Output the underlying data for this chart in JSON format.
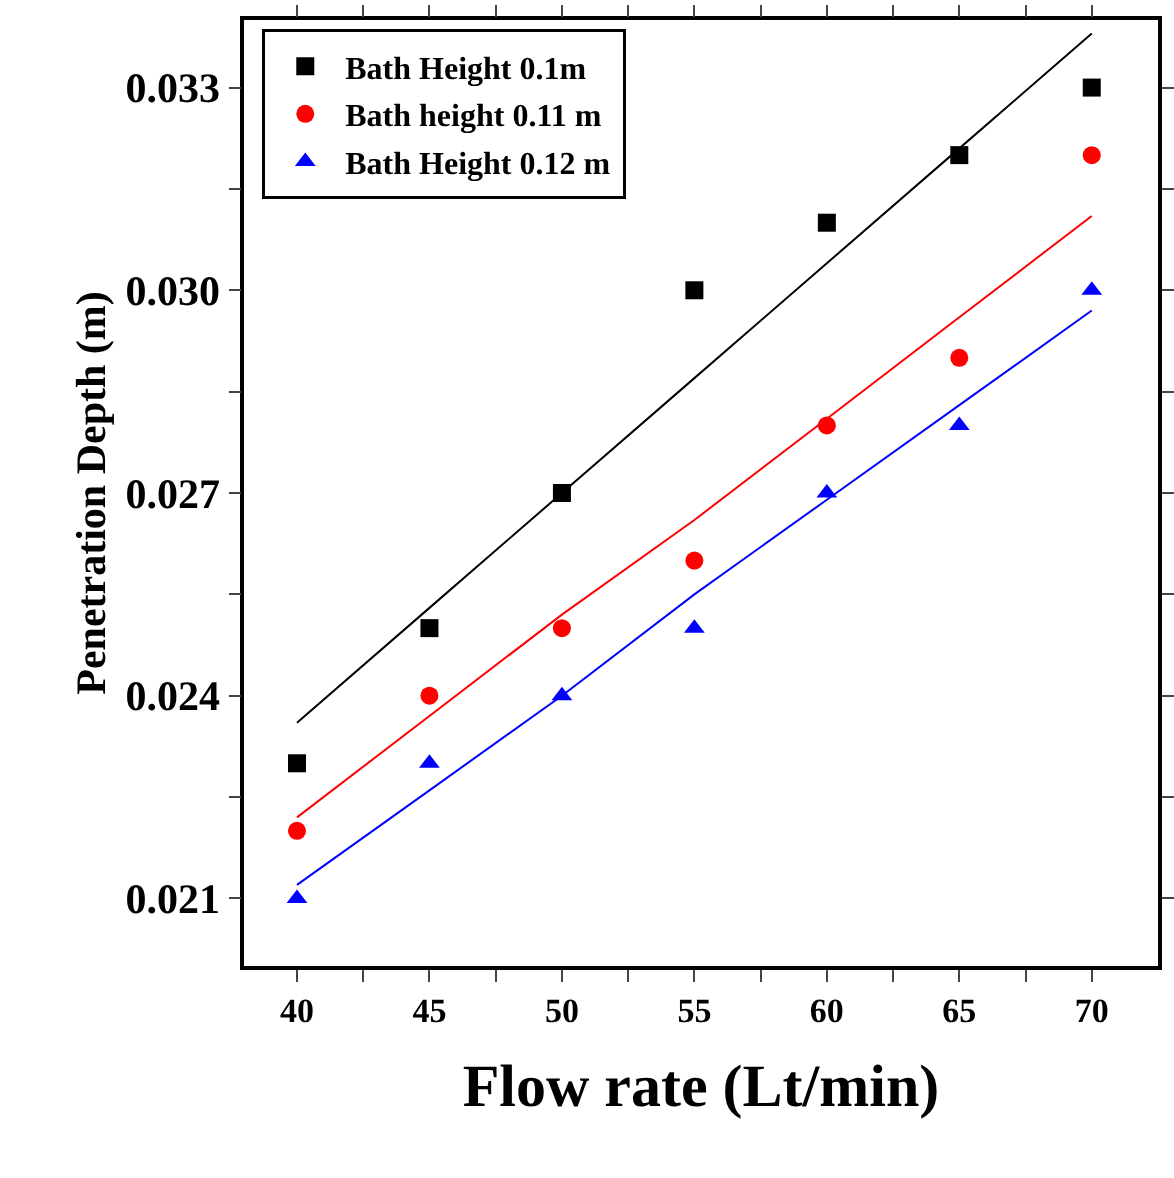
{
  "chart_data": {
    "type": "scatter",
    "xlabel": "Flow rate (Lt/min)",
    "ylabel": "Penetration Depth (m)",
    "x": [
      40,
      45,
      50,
      55,
      60,
      65,
      70
    ],
    "series": [
      {
        "name": "Bath Height 0.1m",
        "color": "#000000",
        "marker": "square",
        "values": [
          0.023,
          0.025,
          0.027,
          0.03,
          0.031,
          0.032,
          0.033
        ]
      },
      {
        "name": "Bath height 0.11 m",
        "color": "#ff0000",
        "marker": "circle",
        "values": [
          0.022,
          0.024,
          0.025,
          0.026,
          0.028,
          0.029,
          0.032
        ]
      },
      {
        "name": "Bath Height 0.12 m",
        "color": "#0000ff",
        "marker": "triangle",
        "values": [
          0.021,
          0.023,
          0.024,
          0.025,
          0.027,
          0.028,
          0.03
        ]
      },
      {
        "type": "line",
        "color": "#000000",
        "marker": "none",
        "values": [
          0.0236,
          0.0253,
          0.027,
          0.0287,
          0.0304,
          0.0321,
          0.0338
        ]
      },
      {
        "type": "line",
        "color": "#ff0000",
        "marker": "none",
        "values": [
          0.0222,
          0.0237,
          0.0252,
          0.0266,
          0.0281,
          0.0296,
          0.0311
        ]
      },
      {
        "type": "line",
        "color": "#0000ff",
        "marker": "none",
        "values": [
          0.0212,
          0.0226,
          0.024,
          0.0255,
          0.0269,
          0.0283,
          0.0297
        ]
      }
    ],
    "xlim": [
      38,
      72.5
    ],
    "ylim": [
      0.02,
      0.034
    ],
    "xticks": [
      40,
      {
        "value": 42.5,
        "label": null
      },
      45,
      {
        "value": 47.5,
        "label": null
      },
      50,
      {
        "value": 52.5,
        "label": null
      },
      55,
      {
        "value": 57.5,
        "label": null
      },
      60,
      {
        "value": 62.5,
        "label": null
      },
      65,
      {
        "value": 67.5,
        "label": null
      },
      70
    ],
    "yticks": [
      0.021,
      {
        "value": 0.0225,
        "label": null
      },
      0.024,
      {
        "value": 0.0255,
        "label": null
      },
      0.027,
      {
        "value": 0.0285,
        "label": null
      },
      {
        "value": 0.03,
        "label": "0.030"
      },
      {
        "value": 0.0315,
        "label": null
      },
      0.033
    ],
    "grid": false,
    "legend": "top left"
  }
}
